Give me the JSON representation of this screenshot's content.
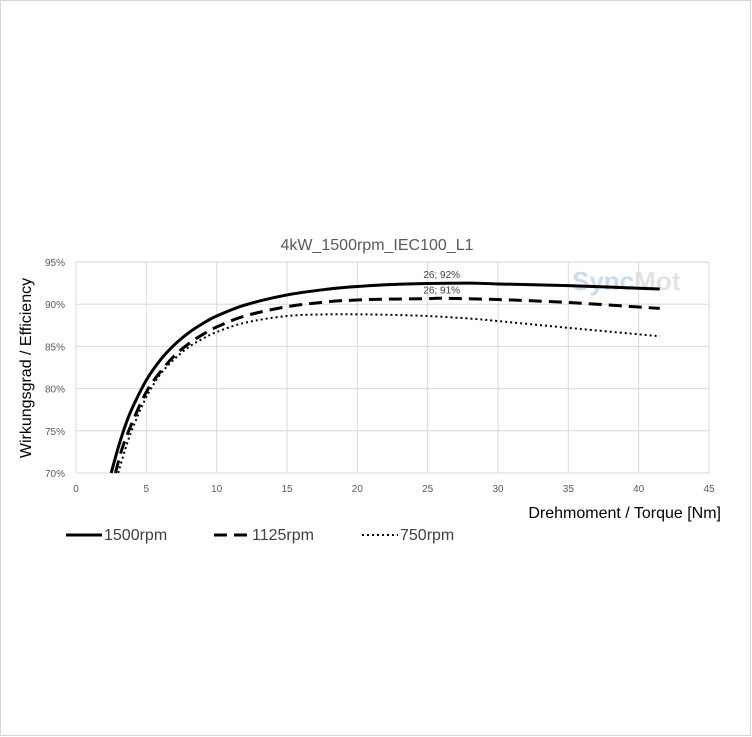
{
  "chart_data": {
    "type": "line",
    "title": "4kW_1500rpm_IEC100_L1",
    "xlabel": "Drehmoment / Torque [Nm]",
    "ylabel": "Wirkungsgrad / Efficiency",
    "xlim": [
      0,
      45
    ],
    "ylim": [
      70,
      95
    ],
    "x_ticks": [
      "0",
      "5",
      "10",
      "15",
      "20",
      "25",
      "30",
      "35",
      "40",
      "45"
    ],
    "y_ticks": [
      "70%",
      "75%",
      "80%",
      "85%",
      "90%",
      "95%"
    ],
    "grid": true,
    "legend_position": "bottom",
    "series": [
      {
        "name": "1500rpm",
        "style": "solid",
        "color": "#000000",
        "x": [
          2.5,
          3,
          3.5,
          4,
          5,
          6,
          7,
          8,
          9,
          10,
          12,
          15,
          18,
          20,
          22,
          25,
          28,
          30,
          35,
          41.5
        ],
        "y": [
          70,
          73,
          75.6,
          77.7,
          81,
          83.4,
          85.2,
          86.6,
          87.7,
          88.6,
          89.9,
          91.1,
          91.8,
          92.1,
          92.3,
          92.45,
          92.5,
          92.4,
          92.2,
          91.8
        ]
      },
      {
        "name": "1125rpm",
        "style": "dashed",
        "color": "#000000",
        "x": [
          2.8,
          3.3,
          4,
          5,
          6,
          7,
          8,
          9,
          10,
          12,
          15,
          18,
          20,
          22,
          25,
          26,
          30,
          35,
          41.5
        ],
        "y": [
          70,
          73,
          76,
          79.6,
          82,
          83.9,
          85.3,
          86.4,
          87.3,
          88.6,
          89.7,
          90.3,
          90.5,
          90.6,
          90.65,
          90.7,
          90.55,
          90.2,
          89.5
        ]
      },
      {
        "name": "750rpm",
        "style": "dotted",
        "color": "#000000",
        "x": [
          3,
          3.5,
          4,
          5,
          6,
          7,
          8,
          9,
          10,
          12,
          15,
          18,
          20,
          22,
          25,
          28,
          30,
          35,
          41.5
        ],
        "y": [
          70,
          72.8,
          75.2,
          79,
          81.7,
          83.5,
          84.9,
          85.9,
          86.7,
          87.8,
          88.6,
          88.8,
          88.8,
          88.75,
          88.6,
          88.3,
          88.0,
          87.2,
          86.2
        ]
      }
    ],
    "annotations": [
      {
        "text": "26; 92%",
        "x": 26,
        "y": 92.5
      },
      {
        "text": "26; 91%",
        "x": 26,
        "y": 90.7
      }
    ]
  },
  "watermark": {
    "text_a": "Sync",
    "text_b": "Mot",
    "color_a": "#c9dcef",
    "color_b": "#e3e3e3"
  }
}
